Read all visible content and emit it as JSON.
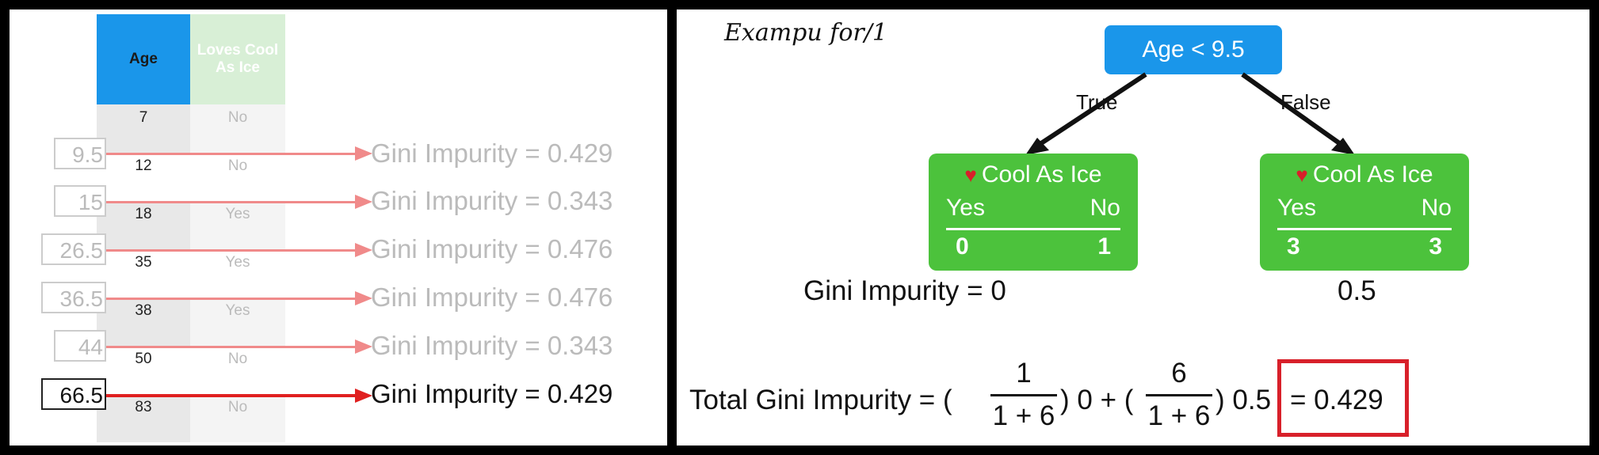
{
  "left_panel": {
    "headers": {
      "age": "Age",
      "loves": "Loves Cool As Ice"
    },
    "rows": [
      {
        "age": "7",
        "loves": "No"
      },
      {
        "age": "12",
        "loves": "No"
      },
      {
        "age": "18",
        "loves": "Yes"
      },
      {
        "age": "35",
        "loves": "Yes"
      },
      {
        "age": "38",
        "loves": "Yes"
      },
      {
        "age": "50",
        "loves": "No"
      },
      {
        "age": "83",
        "loves": "No"
      }
    ],
    "thresholds": [
      {
        "value": "9.5",
        "gini": "Gini Impurity = 0.429",
        "active": false
      },
      {
        "value": "15",
        "gini": "Gini Impurity = 0.343",
        "active": false
      },
      {
        "value": "26.5",
        "gini": "Gini Impurity = 0.476",
        "active": false
      },
      {
        "value": "36.5",
        "gini": "Gini Impurity = 0.476",
        "active": false
      },
      {
        "value": "44",
        "gini": "Gini Impurity = 0.343",
        "active": false
      },
      {
        "value": "66.5",
        "gini": "Gini Impurity = 0.429",
        "active": true
      }
    ],
    "colors": {
      "age_header": "#1a96ea",
      "loves_header": "#d8efd6",
      "arrow_inactive": "#f08a8a",
      "arrow_active": "#e02020"
    }
  },
  "right_panel": {
    "note": "Exampu for/1",
    "root": "Age < 9.5",
    "branch_true": "True",
    "branch_false": "False",
    "left_leaf": {
      "title": "Cool As Ice",
      "yes_label": "Yes",
      "no_label": "No",
      "yes": "0",
      "no": "1"
    },
    "right_leaf": {
      "title": "Cool As Ice",
      "yes_label": "Yes",
      "no_label": "No",
      "yes": "3",
      "no": "3"
    },
    "left_gini": "Gini Impurity = 0",
    "right_gini": "0.5",
    "formula": {
      "lhs": "Total Gini Impurity = (",
      "frac1_num": "1",
      "frac1_den": "1 + 6",
      "mid": ") 0 + (",
      "frac2_num": "6",
      "frac2_den": "1 + 6",
      "tail": ") 0.5",
      "result": "= 0.429"
    },
    "colors": {
      "root": "#1a96ea",
      "leaf": "#4cc23c",
      "highlight_box": "#d8202a",
      "heart": "#d8202a"
    }
  }
}
